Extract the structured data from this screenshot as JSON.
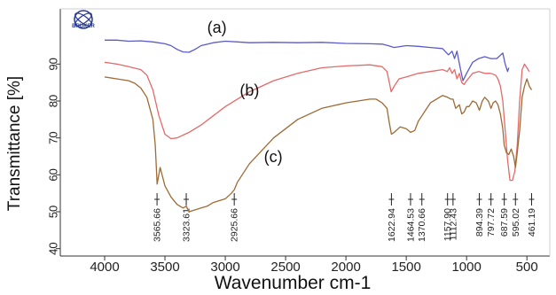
{
  "logo": {
    "text": "BRUKER",
    "color": "#2a3a8f"
  },
  "chart_data": {
    "type": "line",
    "title": "",
    "xlabel": "Wavenumber cm-1",
    "ylabel": "Transmittance [%]",
    "xlim": [
      4000,
      450
    ],
    "ylim": [
      38,
      104
    ],
    "x_ticks": [
      4000,
      3500,
      3000,
      2500,
      2000,
      1500,
      1000,
      500
    ],
    "y_ticks": [
      40,
      50,
      60,
      70,
      80,
      90
    ],
    "grid": false,
    "series": [
      {
        "name": "(a)",
        "color": "#5a5ac8",
        "x": [
          4000,
          3900,
          3800,
          3700,
          3600,
          3500,
          3450,
          3400,
          3350,
          3300,
          3250,
          3200,
          3100,
          3000,
          2900,
          2800,
          2600,
          2400,
          2200,
          2000,
          1800,
          1700,
          1650,
          1600,
          1500,
          1400,
          1300,
          1200,
          1150,
          1120,
          1100,
          1080,
          1050,
          1030,
          1000,
          950,
          900,
          850,
          800,
          750,
          700,
          680,
          660,
          650
        ],
        "values": [
          96.5,
          96.5,
          96.2,
          96.3,
          96,
          95.5,
          95,
          94,
          93.3,
          93.2,
          94,
          95,
          95.8,
          96.2,
          96,
          95.8,
          95.9,
          95.8,
          95.9,
          95.6,
          95.5,
          95.4,
          95,
          94.5,
          95,
          94.8,
          94.5,
          94.2,
          92.5,
          93.5,
          91.5,
          93.5,
          88.5,
          85.5,
          87.5,
          90.5,
          91.5,
          92,
          91.5,
          91.5,
          93,
          90,
          88,
          89
        ]
      },
      {
        "name": "(b)",
        "color": "#e36a6a",
        "x": [
          4000,
          3900,
          3800,
          3700,
          3650,
          3600,
          3550,
          3500,
          3450,
          3400,
          3300,
          3200,
          3100,
          3000,
          2800,
          2600,
          2400,
          2200,
          2000,
          1800,
          1700,
          1660,
          1640,
          1625,
          1600,
          1560,
          1500,
          1450,
          1400,
          1300,
          1200,
          1160,
          1140,
          1120,
          1100,
          1080,
          1060,
          1040,
          1020,
          1000,
          950,
          900,
          850,
          800,
          760,
          740,
          720,
          700,
          680,
          660,
          640,
          620,
          600,
          580,
          560,
          540,
          520,
          500,
          480
        ],
        "values": [
          90.5,
          90,
          89.3,
          88.5,
          87,
          83,
          76,
          71,
          69.8,
          70,
          71.5,
          73.5,
          76,
          78.5,
          82.5,
          85.5,
          87.5,
          89,
          89.5,
          89.8,
          89.3,
          88,
          85,
          82.5,
          84,
          86,
          86.5,
          87,
          87.5,
          88,
          88.5,
          88,
          89,
          87.5,
          88.5,
          86,
          87.5,
          85,
          84.5,
          85.5,
          87.5,
          88,
          87.5,
          87.5,
          87,
          86,
          84,
          80,
          72,
          64,
          58.5,
          58.5,
          61,
          68,
          80,
          88.5,
          90,
          89,
          88
        ]
      },
      {
        "name": "(c)",
        "color": "#9e6b35",
        "x": [
          4000,
          3900,
          3800,
          3750,
          3700,
          3650,
          3600,
          3580,
          3565,
          3540,
          3500,
          3450,
          3400,
          3350,
          3323,
          3300,
          3250,
          3200,
          3150,
          3100,
          3050,
          3000,
          2950,
          2925,
          2900,
          2800,
          2600,
          2400,
          2200,
          2000,
          1900,
          1800,
          1750,
          1700,
          1660,
          1640,
          1623,
          1600,
          1550,
          1500,
          1464,
          1430,
          1400,
          1370,
          1340,
          1300,
          1250,
          1200,
          1158,
          1130,
          1112,
          1090,
          1060,
          1040,
          1020,
          1000,
          980,
          950,
          920,
          894,
          870,
          850,
          820,
          798,
          780,
          760,
          740,
          720,
          700,
          688,
          670,
          650,
          630,
          610,
          595,
          580,
          560,
          540,
          520,
          500,
          480,
          461
        ],
        "values": [
          86.5,
          86,
          85.5,
          84.8,
          83.5,
          81,
          75,
          68,
          57.5,
          62,
          57,
          54,
          52,
          51,
          51.5,
          50,
          50.5,
          51,
          51.5,
          52.5,
          53,
          53.5,
          55,
          56,
          58,
          63,
          70,
          75,
          78,
          79.5,
          80,
          80.5,
          80.5,
          79.5,
          78,
          74,
          71,
          71.5,
          73,
          72.5,
          71.5,
          72,
          74.5,
          76,
          77.5,
          79.5,
          80.5,
          81.5,
          81,
          80.5,
          80.5,
          78,
          79,
          76.5,
          77,
          78.5,
          78.5,
          80,
          79.5,
          77.5,
          80,
          81,
          80,
          78,
          79.5,
          80,
          79,
          76.5,
          72.5,
          68,
          66,
          65.5,
          67,
          65,
          62,
          66,
          72,
          81,
          84,
          86,
          84,
          83
        ]
      }
    ],
    "curve_labels": [
      {
        "text": "(a)",
        "x": 3150,
        "y": 98.5
      },
      {
        "text": "(b)",
        "x": 2880,
        "y": 81.5
      },
      {
        "text": "(c)",
        "x": 2680,
        "y": 63.5
      }
    ],
    "peak_labels": [
      {
        "text": "3565.66",
        "x": 3565.66
      },
      {
        "text": "3323.61",
        "x": 3323.61
      },
      {
        "text": "2925.66",
        "x": 2925.66
      },
      {
        "text": "1622.94",
        "x": 1622.94
      },
      {
        "text": "1464.53",
        "x": 1464.53
      },
      {
        "text": "1370.66",
        "x": 1370.66
      },
      {
        "text": "1157.90",
        "x": 1157.9
      },
      {
        "text": "1112.43",
        "x": 1112.43
      },
      {
        "text": "894.39",
        "x": 894.39
      },
      {
        "text": "797.72",
        "x": 797.72
      },
      {
        "text": "687.59",
        "x": 687.59
      },
      {
        "text": "595.02",
        "x": 595.02
      },
      {
        "text": "461.19",
        "x": 461.19
      }
    ]
  }
}
